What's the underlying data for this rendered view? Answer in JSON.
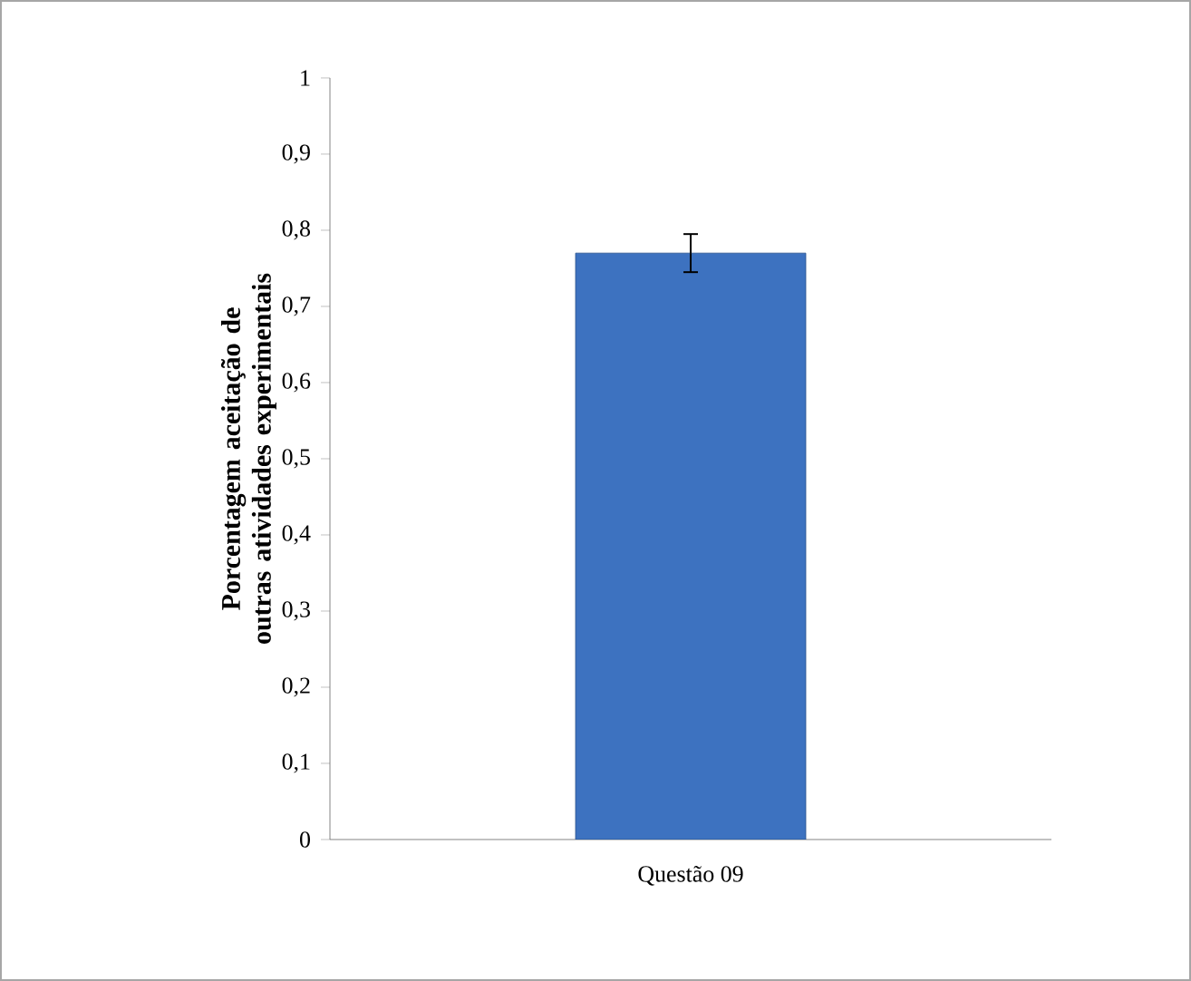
{
  "chart_data": {
    "type": "bar",
    "categories": [
      "Questão 09"
    ],
    "values": [
      0.77
    ],
    "errors": [
      0.025
    ],
    "color": "#3d72c0",
    "ylabel": "Porcentagem aceitação de outras atividades experimentais",
    "ylim": [
      0,
      1
    ],
    "yticks": [
      0,
      {
        "value": 0.1,
        "label": "0,1"
      },
      {
        "value": 0.2,
        "label": "0,2"
      },
      {
        "value": 0.3,
        "label": "0,3"
      },
      {
        "value": 0.4,
        "label": "0,4"
      },
      {
        "value": 0.5,
        "label": "0,5"
      },
      {
        "value": 0.6,
        "label": "0,6"
      },
      {
        "value": 0.7,
        "label": "0,7"
      },
      {
        "value": 0.8,
        "label": "0,8"
      },
      {
        "value": 0.9,
        "label": "0,9"
      },
      1
    ],
    "grid": false
  }
}
